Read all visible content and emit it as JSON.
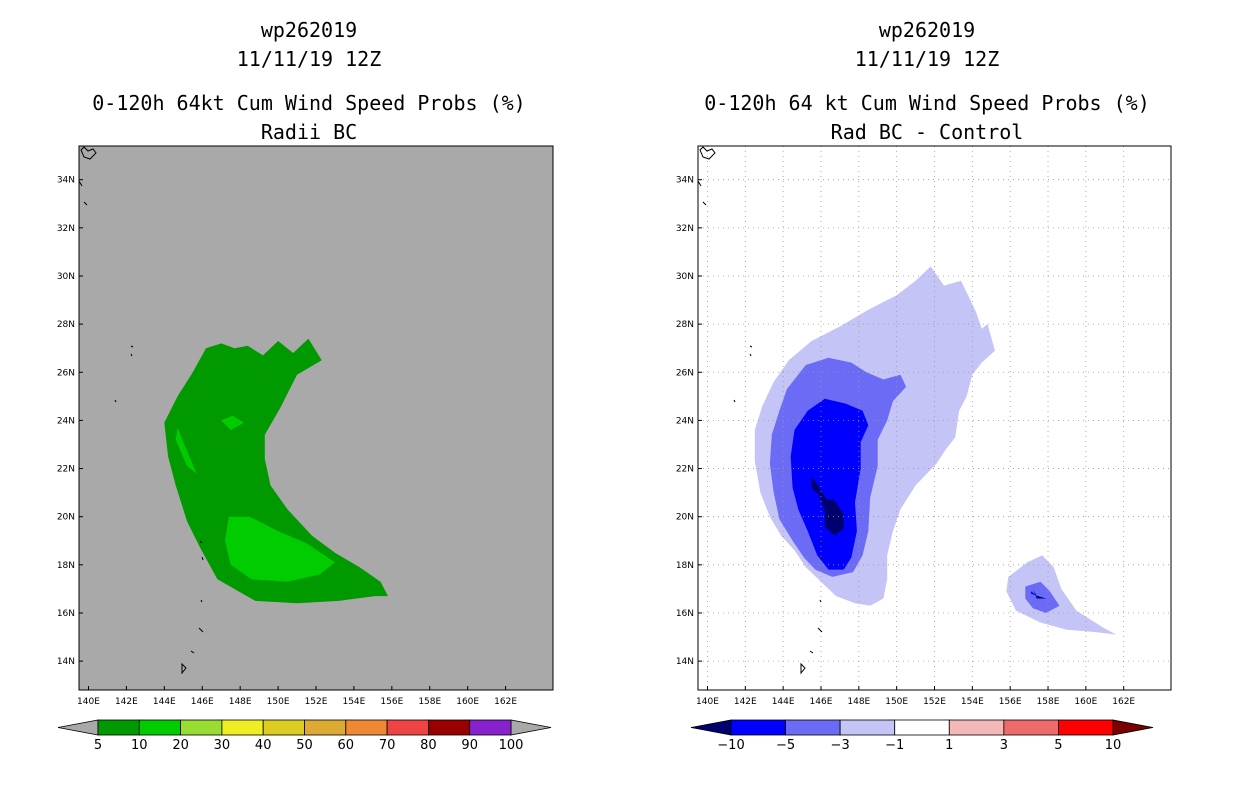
{
  "chart_data": [
    {
      "type": "heatmap",
      "subtype": "filled-contour-map",
      "storm_id": "wp262019",
      "date": "11/11/19 12Z",
      "title": "0-120h 64kt Cum Wind Speed Probs (%)",
      "subtitle": "Radii BC",
      "units": "%",
      "background_color": "#a9a9a9",
      "lon_range": [
        139.5,
        164.5
      ],
      "lat_range": [
        12.8,
        35.4
      ],
      "x_ticks": [
        "140E",
        "142E",
        "144E",
        "146E",
        "148E",
        "150E",
        "152E",
        "154E",
        "156E",
        "158E",
        "160E",
        "162E"
      ],
      "y_ticks": [
        "14N",
        "16N",
        "18N",
        "20N",
        "22N",
        "24N",
        "26N",
        "28N",
        "30N",
        "32N",
        "34N"
      ],
      "grid": false,
      "colorbar": {
        "labels": [
          "5",
          "10",
          "20",
          "30",
          "40",
          "50",
          "60",
          "70",
          "80",
          "90",
          "100"
        ],
        "colors": [
          "#009900",
          "#00cc00",
          "#99dd33",
          "#eeee22",
          "#ddcc22",
          "#ddaa33",
          "#ee8833",
          "#ee4444",
          "#990000",
          "#8822cc"
        ],
        "end_color": "#a9a9a9"
      },
      "regions": [
        {
          "level": "5-10",
          "color": "#009900",
          "lonlat": [
            [
              146.2,
              27
            ],
            [
              147,
              27.2
            ],
            [
              147.7,
              27
            ],
            [
              148.4,
              27.1
            ],
            [
              149.2,
              26.7
            ],
            [
              150,
              27.3
            ],
            [
              150.8,
              26.8
            ],
            [
              151.6,
              27.4
            ],
            [
              152.3,
              26.5
            ],
            [
              151,
              25.9
            ],
            [
              150.1,
              24.5
            ],
            [
              149.3,
              23.4
            ],
            [
              149.3,
              22.4
            ],
            [
              149.6,
              21.3
            ],
            [
              150.5,
              20.3
            ],
            [
              151.8,
              19.2
            ],
            [
              153,
              18.5
            ],
            [
              154.3,
              17.9
            ],
            [
              155.4,
              17.3
            ],
            [
              155.8,
              16.7
            ],
            [
              155.1,
              16.7
            ],
            [
              153.2,
              16.5
            ],
            [
              151,
              16.4
            ],
            [
              148.8,
              16.5
            ],
            [
              146.8,
              17.4
            ],
            [
              145.9,
              18.7
            ],
            [
              145.2,
              19.8
            ],
            [
              144.6,
              21.3
            ],
            [
              144.2,
              22.5
            ],
            [
              144,
              23.9
            ],
            [
              144.7,
              25
            ],
            [
              145.5,
              26
            ]
          ]
        },
        {
          "level": "10-20",
          "color": "#00cc00",
          "lonlat": [
            [
              147.4,
              20
            ],
            [
              148.5,
              20
            ],
            [
              150,
              19.4
            ],
            [
              151.5,
              18.9
            ],
            [
              153,
              18.1
            ],
            [
              152.2,
              17.6
            ],
            [
              150.5,
              17.3
            ],
            [
              148.6,
              17.4
            ],
            [
              147.5,
              18
            ],
            [
              147.2,
              19
            ]
          ]
        },
        {
          "level": "10-20",
          "color": "#00cc00",
          "lonlat": [
            [
              144.7,
              23.7
            ],
            [
              145,
              23.1
            ],
            [
              145.7,
              21.8
            ],
            [
              145.2,
              22.1
            ],
            [
              144.6,
              23.2
            ]
          ]
        },
        {
          "level": "10-20",
          "color": "#00cc00",
          "lonlat": [
            [
              147,
              24
            ],
            [
              147.6,
              24.2
            ],
            [
              148.2,
              23.9
            ],
            [
              147.5,
              23.6
            ]
          ]
        }
      ]
    },
    {
      "type": "heatmap",
      "subtype": "filled-contour-map",
      "storm_id": "wp262019",
      "date": "11/11/19 12Z",
      "title": "0-120h 64 kt Cum Wind Speed Probs (%)",
      "subtitle": "Rad BC - Control",
      "units": "%",
      "background_color": "#ffffff",
      "lon_range": [
        139.5,
        164.5
      ],
      "lat_range": [
        12.8,
        35.4
      ],
      "x_ticks": [
        "140E",
        "142E",
        "144E",
        "146E",
        "148E",
        "150E",
        "152E",
        "154E",
        "156E",
        "158E",
        "160E",
        "162E"
      ],
      "y_ticks": [
        "14N",
        "16N",
        "18N",
        "20N",
        "22N",
        "24N",
        "26N",
        "28N",
        "30N",
        "32N",
        "34N"
      ],
      "grid": true,
      "colorbar": {
        "labels": [
          "-10",
          "-5",
          "-3",
          "-1",
          "1",
          "3",
          "5",
          "10"
        ],
        "colors": [
          "#0000ff",
          "#6b6bf5",
          "#c4c4f7",
          "#ffffff",
          "#f5b8b8",
          "#ef6a6a",
          "#ff0000"
        ],
        "end_low_color": "#00006e",
        "end_high_color": "#7a0000"
      },
      "regions": [
        {
          "level": "-3 to -1",
          "color": "#c4c4f7",
          "lonlat": [
            [
              145.5,
              27.3
            ],
            [
              147,
              27.9
            ],
            [
              148.5,
              28.6
            ],
            [
              150,
              29.2
            ],
            [
              151,
              29.8
            ],
            [
              151.8,
              30.4
            ],
            [
              152.5,
              29.6
            ],
            [
              153.4,
              29.8
            ],
            [
              154.2,
              28.5
            ],
            [
              154.5,
              27.8
            ],
            [
              154.8,
              28
            ],
            [
              155.2,
              26.9
            ],
            [
              154.5,
              26.4
            ],
            [
              154,
              25.9
            ],
            [
              153.7,
              25
            ],
            [
              153.3,
              24.4
            ],
            [
              153.1,
              23.3
            ],
            [
              152.6,
              22.8
            ],
            [
              152.1,
              22.2
            ],
            [
              151,
              21.3
            ],
            [
              150.2,
              20.3
            ],
            [
              149.8,
              19.4
            ],
            [
              149.5,
              18.4
            ],
            [
              149.5,
              17.4
            ],
            [
              149.3,
              16.6
            ],
            [
              148.6,
              16.3
            ],
            [
              147.8,
              16.4
            ],
            [
              146.8,
              16.7
            ],
            [
              146,
              17.3
            ],
            [
              145.2,
              17.9
            ],
            [
              144.6,
              18.6
            ],
            [
              143.9,
              19.2
            ],
            [
              143.3,
              20
            ],
            [
              142.8,
              21
            ],
            [
              142.5,
              22.3
            ],
            [
              142.5,
              23.6
            ],
            [
              142.9,
              24.6
            ],
            [
              143.5,
              25.6
            ],
            [
              144.3,
              26.5
            ]
          ]
        },
        {
          "level": "-3 to -1",
          "color": "#c4c4f7",
          "lonlat": [
            [
              155.9,
              17.5
            ],
            [
              156.9,
              18.1
            ],
            [
              157.7,
              18.4
            ],
            [
              158.3,
              17.9
            ],
            [
              158.7,
              17
            ],
            [
              159.5,
              16.1
            ],
            [
              160.9,
              15.4
            ],
            [
              161.6,
              15.1
            ],
            [
              160.6,
              15.2
            ],
            [
              159,
              15.3
            ],
            [
              157.6,
              15.6
            ],
            [
              156.3,
              16.1
            ],
            [
              155.8,
              16.9
            ]
          ]
        },
        {
          "level": "-5 to -3",
          "color": "#6b6bf5",
          "lonlat": [
            [
              144.2,
              25.3
            ],
            [
              145.2,
              26.3
            ],
            [
              146.4,
              26.6
            ],
            [
              147.6,
              26.4
            ],
            [
              148.4,
              26
            ],
            [
              149.3,
              25.7
            ],
            [
              150.2,
              25.9
            ],
            [
              150.5,
              25.4
            ],
            [
              149.8,
              24.8
            ],
            [
              149.5,
              24
            ],
            [
              149,
              23.2
            ],
            [
              149,
              22.1
            ],
            [
              148.6,
              20.8
            ],
            [
              148.5,
              19.4
            ],
            [
              148.2,
              18.4
            ],
            [
              147.7,
              17.7
            ],
            [
              146.6,
              17.5
            ],
            [
              145.7,
              17.8
            ],
            [
              145.1,
              18.3
            ],
            [
              144.5,
              19
            ],
            [
              143.8,
              19.9
            ],
            [
              143.5,
              21
            ],
            [
              143.3,
              22.2
            ],
            [
              143.4,
              23.4
            ],
            [
              143.8,
              24.4
            ]
          ]
        },
        {
          "level": "-5 to -3",
          "color": "#6b6bf5",
          "lonlat": [
            [
              156.8,
              17.1
            ],
            [
              157.6,
              17.3
            ],
            [
              158.1,
              16.9
            ],
            [
              158.6,
              16.3
            ],
            [
              157.9,
              16
            ],
            [
              157.2,
              16.2
            ],
            [
              156.8,
              16.6
            ]
          ]
        },
        {
          "level": "-10 to -5",
          "color": "#0000ff",
          "lonlat": [
            [
              145.3,
              24.4
            ],
            [
              146.2,
              24.9
            ],
            [
              147.3,
              24.7
            ],
            [
              148.2,
              24.4
            ],
            [
              148.5,
              23.8
            ],
            [
              148.1,
              23.1
            ],
            [
              148.1,
              22
            ],
            [
              147.8,
              20.6
            ],
            [
              147.9,
              19.4
            ],
            [
              147.6,
              18.3
            ],
            [
              147.2,
              17.8
            ],
            [
              146.4,
              17.8
            ],
            [
              145.8,
              18.4
            ],
            [
              145.3,
              19.4
            ],
            [
              144.8,
              20.3
            ],
            [
              144.5,
              21.2
            ],
            [
              144.4,
              22.5
            ],
            [
              144.6,
              23.6
            ]
          ]
        },
        {
          "level": "-10 to -5",
          "color": "#0000ff",
          "lonlat": [
            [
              157.1,
              16.9
            ],
            [
              157.6,
              16.6
            ],
            [
              157.9,
              16.6
            ],
            [
              157.1,
              16.8
            ]
          ]
        },
        {
          "level": "< -10",
          "color": "#00006e",
          "lonlat": [
            [
              145.5,
              21.7
            ],
            [
              146,
              21.1
            ],
            [
              146.3,
              20.7
            ],
            [
              146.7,
              20.7
            ],
            [
              147.2,
              20.1
            ],
            [
              147.2,
              19.5
            ],
            [
              146.7,
              19.2
            ],
            [
              146.2,
              19.6
            ],
            [
              146.2,
              20.2
            ],
            [
              145.9,
              20.9
            ],
            [
              145.5,
              21.2
            ]
          ]
        },
        {
          "level": "< -10",
          "color": "#00006e",
          "lonlat": [
            [
              157.2,
              17
            ],
            [
              157.4,
              16.7
            ],
            [
              157.9,
              16.6
            ],
            [
              157.4,
              16.6
            ]
          ]
        }
      ]
    }
  ]
}
